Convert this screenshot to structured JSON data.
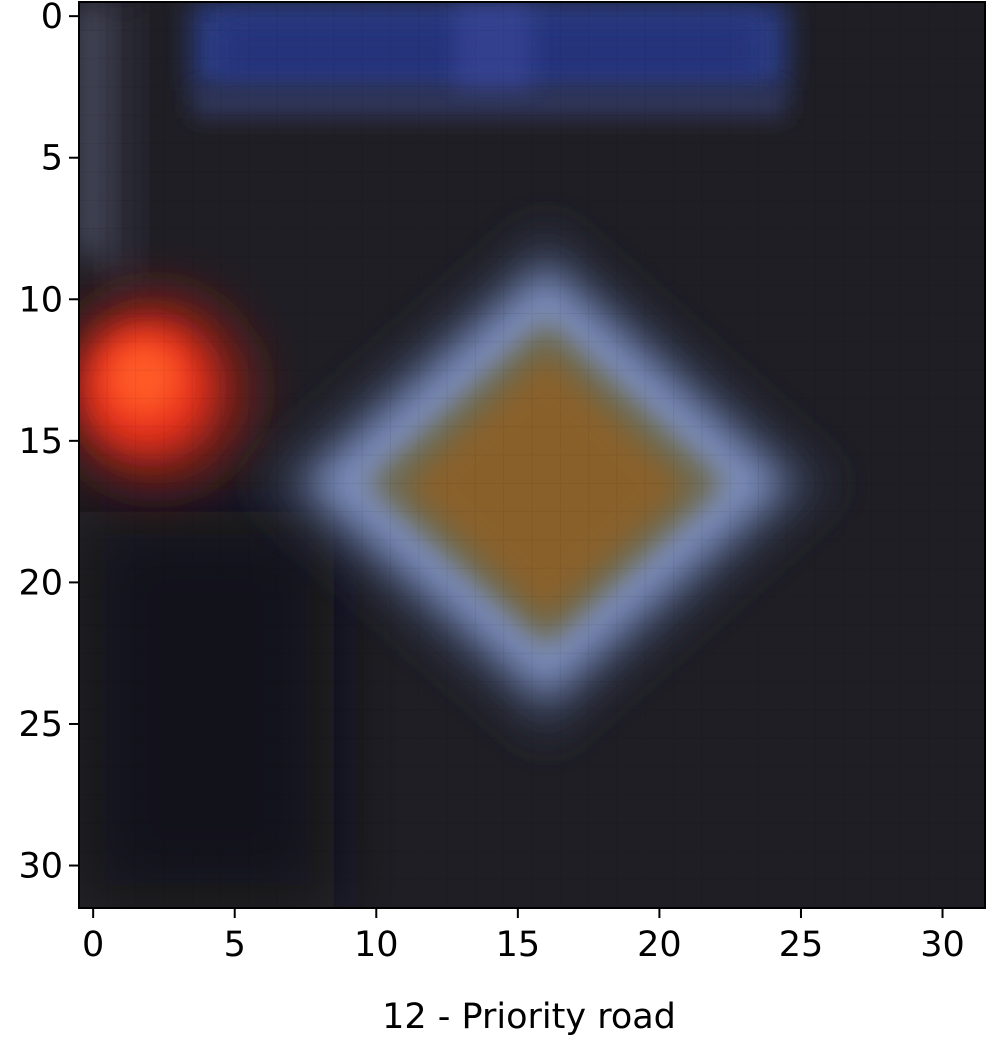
{
  "chart_data": {
    "type": "heatmap",
    "title": "",
    "xlabel": "12 - Priority road",
    "ylabel": "",
    "grid": false,
    "xlim": [
      -0.5,
      31.5
    ],
    "ylim": [
      31.5,
      -0.5
    ],
    "xticks": [
      0,
      5,
      10,
      15,
      20,
      25,
      30
    ],
    "yticks": [
      0,
      5,
      10,
      15,
      20,
      25,
      30
    ],
    "image": {
      "width": 32,
      "height": 32,
      "background": "#1f1e24",
      "blobs": [
        {
          "kind": "rect",
          "x0": 3.5,
          "x1": 24.5,
          "y0": -0.5,
          "y1": 2.6,
          "color": "#2c3f8a",
          "opacity": 0.95,
          "blur": 0.5
        },
        {
          "kind": "rect",
          "x0": 4.5,
          "x1": 23.5,
          "y0": 0.2,
          "y1": 2.2,
          "color": "#22307a",
          "opacity": 0.9,
          "blur": 0.5
        },
        {
          "kind": "rect",
          "x0": 3.5,
          "x1": 24.5,
          "y0": 2.5,
          "y1": 3.6,
          "color": "#333a62",
          "opacity": 0.85,
          "blur": 0.4
        },
        {
          "kind": "rect",
          "x0": 12.8,
          "x1": 15.5,
          "y0": -0.5,
          "y1": 2.6,
          "color": "#3b4a9a",
          "opacity": 0.6,
          "blur": 0.4
        },
        {
          "kind": "rect",
          "x0": -0.5,
          "x1": 0.5,
          "y0": -0.5,
          "y1": 8.5,
          "color": "#5a5f7a",
          "opacity": 0.85,
          "blur": 0.6
        },
        {
          "kind": "rect",
          "x0": 0.5,
          "x1": 1.5,
          "y0": -0.5,
          "y1": 9.5,
          "color": "#36374a",
          "opacity": 0.7,
          "blur": 0.6
        },
        {
          "kind": "rect",
          "x0": -0.5,
          "x1": 8.5,
          "y0": 17.5,
          "y1": 31.5,
          "color": "#101015",
          "opacity": 0.8,
          "blur": 1.2
        },
        {
          "kind": "circle",
          "cx": 2.2,
          "cy": 13.2,
          "r": 3.4,
          "color": "#8a1a16",
          "opacity": 0.95,
          "blur": 0.9
        },
        {
          "kind": "circle",
          "cx": 1.9,
          "cy": 13.1,
          "r": 2.3,
          "color": "#e8321c",
          "opacity": 1,
          "blur": 0.6
        },
        {
          "kind": "circle",
          "cx": 1.8,
          "cy": 12.8,
          "r": 1.3,
          "color": "#ff5a28",
          "opacity": 1,
          "blur": 0.5
        },
        {
          "kind": "diamond",
          "cx": 16.0,
          "cy": 16.5,
          "rx": 10.3,
          "ry": 9.2,
          "color": "#2e3548",
          "opacity": 0.9,
          "blur": 0.8
        },
        {
          "kind": "diamond",
          "cx": 16.0,
          "cy": 16.5,
          "rx": 8.6,
          "ry": 7.7,
          "color": "#7d8fbf",
          "opacity": 1,
          "blur": 0.7
        },
        {
          "kind": "diamond",
          "cx": 16.0,
          "cy": 16.5,
          "rx": 6.4,
          "ry": 5.8,
          "color": "#6c6a52",
          "opacity": 1,
          "blur": 0.5
        },
        {
          "kind": "diamond",
          "cx": 16.0,
          "cy": 16.6,
          "rx": 5.0,
          "ry": 4.7,
          "color": "#89612a",
          "opacity": 1,
          "blur": 0.5
        }
      ]
    }
  }
}
